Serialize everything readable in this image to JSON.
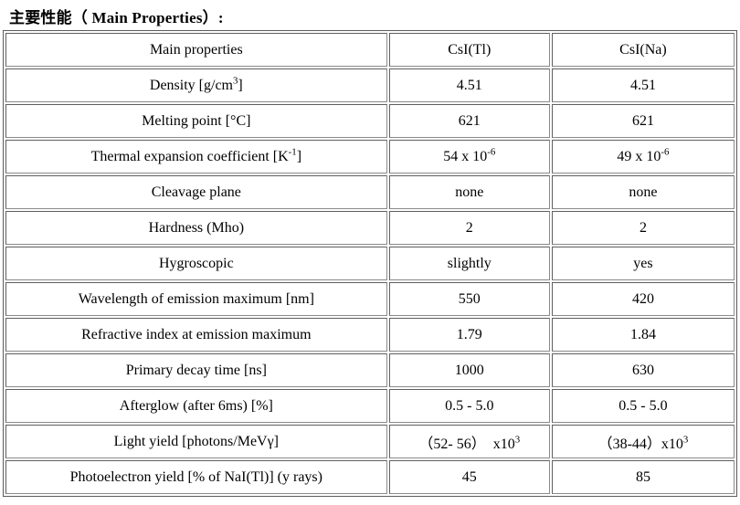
{
  "title": "主要性能（ Main Properties）:",
  "table": {
    "headers": [
      "Main properties",
      "CsI(Tl)",
      "CsI(Na)"
    ],
    "rows": [
      {
        "property": "Density [g/cm<sup>3</sup>]",
        "csi_tl": "4.51",
        "csi_na": "4.51"
      },
      {
        "property": "Melting point [°C]",
        "csi_tl": "621",
        "csi_na": "621"
      },
      {
        "property": "Thermal expansion coefficient [K<sup>-1</sup>]",
        "csi_tl": "54 x 10<sup>-6</sup>",
        "csi_na": "49 x 10<sup>-6</sup>"
      },
      {
        "property": "Cleavage plane",
        "csi_tl": "none",
        "csi_na": "none"
      },
      {
        "property": "Hardness (Mho)",
        "csi_tl": "2",
        "csi_na": "2"
      },
      {
        "property": "Hygroscopic",
        "csi_tl": "slightly",
        "csi_na": "yes"
      },
      {
        "property": "Wavelength of emission maximum [nm]",
        "csi_tl": "550",
        "csi_na": "420"
      },
      {
        "property": "Refractive index at emission maximum",
        "csi_tl": "1.79",
        "csi_na": "1.84"
      },
      {
        "property": "Primary decay time [ns]",
        "csi_tl": "1000",
        "csi_na": "630"
      },
      {
        "property": "Afterglow (after 6ms) [%]",
        "csi_tl": "0.5 - 5.0",
        "csi_na": "0.5 - 5.0"
      },
      {
        "property": "Light yield [photons/MeVγ]",
        "csi_tl": "（52- 56）  x10<sup>3</sup>",
        "csi_na": "（38-44）x10<sup>3</sup>"
      },
      {
        "property": "Photoelectron yield [% of NaI(Tl)] (y rays)",
        "csi_tl": "45",
        "csi_na": "85"
      }
    ]
  }
}
